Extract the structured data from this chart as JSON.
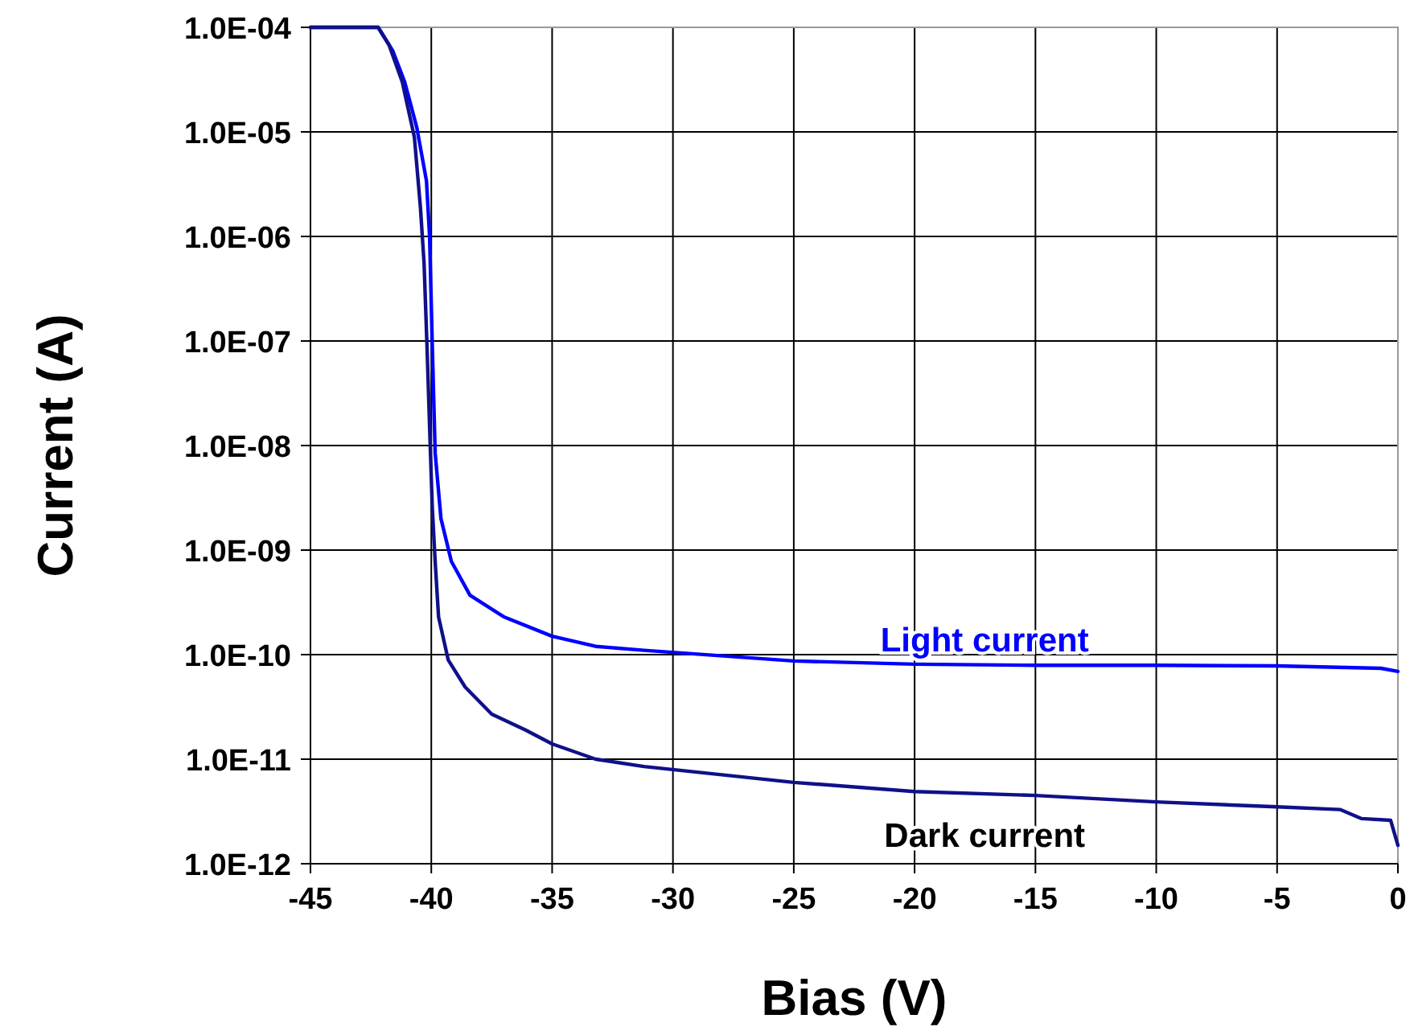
{
  "chart_data": {
    "type": "line",
    "xlabel": "Bias (V)",
    "ylabel": "Current (A)",
    "log": "y",
    "grid": true,
    "marker": "none",
    "line_style": "solid",
    "xlim": [
      -45,
      0
    ],
    "xticks": [
      -45,
      -40,
      -35,
      -30,
      -25,
      -20,
      -15,
      -10,
      -5,
      0
    ],
    "ylim": [
      1e-12,
      0.0001
    ],
    "yticks": [
      {
        "value": 1e-12,
        "label": "1.0E-12"
      },
      {
        "value": 1e-11,
        "label": "1.0E-11"
      },
      {
        "value": 1e-10,
        "label": "1.0E-10"
      },
      {
        "value": 1e-09,
        "label": "1.0E-09"
      },
      {
        "value": 1e-08,
        "label": "1.0E-08"
      },
      {
        "value": 1e-07,
        "label": "1.0E-07"
      },
      {
        "value": 1e-06,
        "label": "1.0E-06"
      },
      {
        "value": 1e-05,
        "label": "1.0E-05"
      },
      {
        "value": 0.0001,
        "label": "1.0E-04"
      }
    ],
    "series": [
      {
        "name": "Light current",
        "color": "#0000ff",
        "x": [
          -45,
          -42.2,
          -41.6,
          -41.1,
          -40.6,
          -40.2,
          -40.07,
          -39.96,
          -39.84,
          -39.6,
          -39.17,
          -38.4,
          -37,
          -35,
          -33.2,
          -31.2,
          -25,
          -20,
          -15,
          -10,
          -5,
          -0.7,
          0
        ],
        "values": [
          0.0001,
          0.0001,
          6e-05,
          3e-05,
          1.1e-05,
          3.4e-06,
          1e-06,
          9.3e-08,
          8.5e-09,
          2e-09,
          7.8e-10,
          3.7e-10,
          2.3e-10,
          1.5e-10,
          1.2e-10,
          1.1e-10,
          8.7e-11,
          8.1e-11,
          7.9e-11,
          7.9e-11,
          7.8e-11,
          7.4e-11,
          6.9e-11
        ]
      },
      {
        "name": "Dark current",
        "color": "#10108a",
        "x": [
          -45,
          -42.2,
          -41.75,
          -41.2,
          -40.7,
          -40.45,
          -40.3,
          -40.18,
          -40.07,
          -39.96,
          -39.84,
          -39.7,
          -39.3,
          -38.6,
          -37.5,
          -36.1,
          -35,
          -33.2,
          -31.2,
          -25,
          -20,
          -15,
          -10,
          -5,
          -2.4,
          -1.5,
          -0.3,
          0
        ],
        "values": [
          0.0001,
          0.0001,
          6.8e-05,
          3e-05,
          8.9e-06,
          1.9e-06,
          5.6e-07,
          9.3e-08,
          1.5e-08,
          2.6e-09,
          7.8e-10,
          2.3e-10,
          8.9e-11,
          4.9e-11,
          2.7e-11,
          1.9e-11,
          1.4e-11,
          1e-11,
          8.5e-12,
          6e-12,
          4.9e-12,
          4.5e-12,
          3.9e-12,
          3.5e-12,
          3.3e-12,
          2.7e-12,
          2.6e-12,
          1.5e-12
        ]
      }
    ]
  }
}
